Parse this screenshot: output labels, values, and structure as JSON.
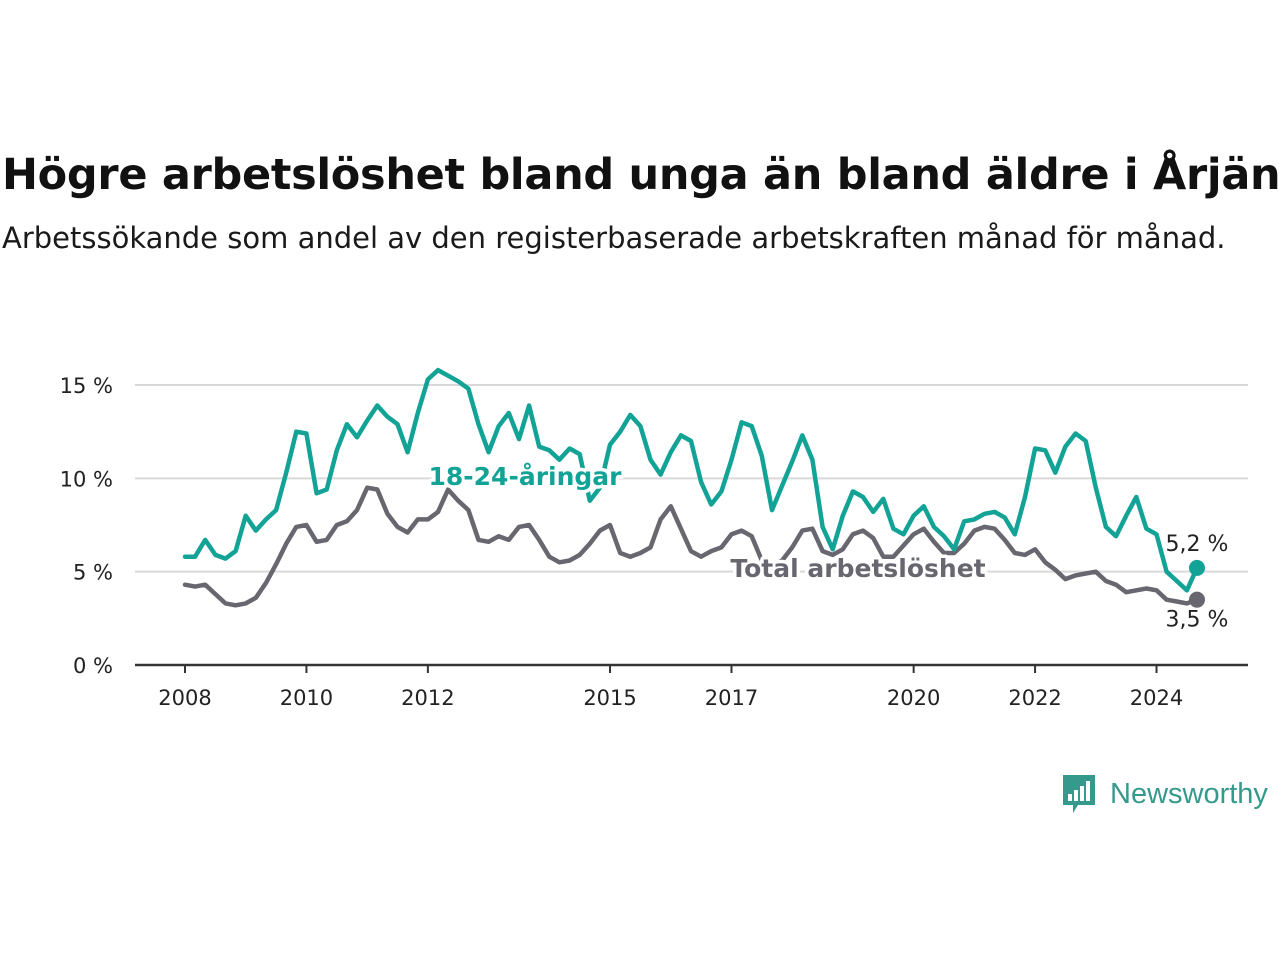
{
  "header": {
    "title": "Högre arbetslöshet bland unga än bland äldre i Årjäng",
    "subtitle": "Arbetssökande som andel av den registerbaserade arbetskraften månad för månad."
  },
  "brand": {
    "name": "Newsworthy",
    "icon": "newsworthy-chart-logo-icon"
  },
  "colors": {
    "young": "#13a396",
    "total": "#68666f",
    "grid": "#d9d9d9",
    "axis": "#333333"
  },
  "chart_data": {
    "type": "line",
    "title": "Högre arbetslöshet bland unga än bland äldre i Årjäng",
    "subtitle": "Arbetssökande som andel av den registerbaserade arbetskraften månad för månad.",
    "x_ticks": [
      "2008",
      "2010",
      "2012",
      "2015",
      "2017",
      "2020",
      "2022",
      "2024"
    ],
    "y_ticks": [
      "0 %",
      "5 %",
      "10 %",
      "15 %"
    ],
    "ylim": [
      0,
      15
    ],
    "xlim": [
      "2008-01",
      "2024-09"
    ],
    "grid": true,
    "legend": "inline labels",
    "series": [
      {
        "name": "18-24-åringar",
        "end_label": "5,2 %",
        "points": [
          [
            "2008-01",
            5.8
          ],
          [
            "2008-03",
            5.8
          ],
          [
            "2008-05",
            6.7
          ],
          [
            "2008-07",
            5.9
          ],
          [
            "2008-09",
            5.7
          ],
          [
            "2008-11",
            6.1
          ],
          [
            "2009-01",
            8.0
          ],
          [
            "2009-03",
            7.2
          ],
          [
            "2009-05",
            7.8
          ],
          [
            "2009-07",
            8.3
          ],
          [
            "2009-09",
            10.3
          ],
          [
            "2009-11",
            12.5
          ],
          [
            "2010-01",
            12.4
          ],
          [
            "2010-03",
            9.2
          ],
          [
            "2010-05",
            9.4
          ],
          [
            "2010-07",
            11.5
          ],
          [
            "2010-09",
            12.9
          ],
          [
            "2010-11",
            12.2
          ],
          [
            "2011-01",
            13.1
          ],
          [
            "2011-03",
            13.9
          ],
          [
            "2011-05",
            13.3
          ],
          [
            "2011-07",
            12.9
          ],
          [
            "2011-09",
            11.4
          ],
          [
            "2011-11",
            13.5
          ],
          [
            "2012-01",
            15.3
          ],
          [
            "2012-03",
            15.8
          ],
          [
            "2012-05",
            15.5
          ],
          [
            "2012-07",
            15.2
          ],
          [
            "2012-09",
            14.8
          ],
          [
            "2012-11",
            12.9
          ],
          [
            "2013-01",
            11.4
          ],
          [
            "2013-03",
            12.8
          ],
          [
            "2013-05",
            13.5
          ],
          [
            "2013-07",
            12.1
          ],
          [
            "2013-09",
            13.9
          ],
          [
            "2013-11",
            11.7
          ],
          [
            "2014-01",
            11.5
          ],
          [
            "2014-03",
            11.0
          ],
          [
            "2014-05",
            11.6
          ],
          [
            "2014-07",
            11.3
          ],
          [
            "2014-09",
            8.8
          ],
          [
            "2014-11",
            9.5
          ],
          [
            "2015-01",
            11.8
          ],
          [
            "2015-03",
            12.5
          ],
          [
            "2015-05",
            13.4
          ],
          [
            "2015-07",
            12.8
          ],
          [
            "2015-09",
            11.0
          ],
          [
            "2015-11",
            10.2
          ],
          [
            "2016-01",
            11.4
          ],
          [
            "2016-03",
            12.3
          ],
          [
            "2016-05",
            12.0
          ],
          [
            "2016-07",
            9.8
          ],
          [
            "2016-09",
            8.6
          ],
          [
            "2016-11",
            9.3
          ],
          [
            "2017-01",
            11.0
          ],
          [
            "2017-03",
            13.0
          ],
          [
            "2017-05",
            12.8
          ],
          [
            "2017-07",
            11.2
          ],
          [
            "2017-09",
            8.3
          ],
          [
            "2017-11",
            9.6
          ],
          [
            "2018-01",
            10.9
          ],
          [
            "2018-03",
            12.3
          ],
          [
            "2018-05",
            11.0
          ],
          [
            "2018-07",
            7.4
          ],
          [
            "2018-09",
            6.2
          ],
          [
            "2018-11",
            8.0
          ],
          [
            "2019-01",
            9.3
          ],
          [
            "2019-03",
            9.0
          ],
          [
            "2019-05",
            8.2
          ],
          [
            "2019-07",
            8.9
          ],
          [
            "2019-09",
            7.3
          ],
          [
            "2019-11",
            7.0
          ],
          [
            "2020-01",
            8.0
          ],
          [
            "2020-03",
            8.5
          ],
          [
            "2020-05",
            7.4
          ],
          [
            "2020-07",
            6.9
          ],
          [
            "2020-09",
            6.2
          ],
          [
            "2020-11",
            7.7
          ],
          [
            "2021-01",
            7.8
          ],
          [
            "2021-03",
            8.1
          ],
          [
            "2021-05",
            8.2
          ],
          [
            "2021-07",
            7.9
          ],
          [
            "2021-09",
            7.0
          ],
          [
            "2021-11",
            9.0
          ],
          [
            "2022-01",
            11.6
          ],
          [
            "2022-03",
            11.5
          ],
          [
            "2022-05",
            10.3
          ],
          [
            "2022-07",
            11.7
          ],
          [
            "2022-09",
            12.4
          ],
          [
            "2022-11",
            12.0
          ],
          [
            "2023-01",
            9.5
          ],
          [
            "2023-03",
            7.4
          ],
          [
            "2023-05",
            6.9
          ],
          [
            "2023-07",
            8.0
          ],
          [
            "2023-09",
            9.0
          ],
          [
            "2023-11",
            7.3
          ],
          [
            "2024-01",
            7.0
          ],
          [
            "2024-03",
            5.0
          ],
          [
            "2024-05",
            4.5
          ],
          [
            "2024-07",
            4.0
          ],
          [
            "2024-09",
            5.2
          ]
        ]
      },
      {
        "name": "Total arbetslöshet",
        "end_label": "3,5 %",
        "points": [
          [
            "2008-01",
            4.3
          ],
          [
            "2008-03",
            4.2
          ],
          [
            "2008-05",
            4.3
          ],
          [
            "2008-07",
            3.8
          ],
          [
            "2008-09",
            3.3
          ],
          [
            "2008-11",
            3.2
          ],
          [
            "2009-01",
            3.3
          ],
          [
            "2009-03",
            3.6
          ],
          [
            "2009-05",
            4.4
          ],
          [
            "2009-07",
            5.4
          ],
          [
            "2009-09",
            6.5
          ],
          [
            "2009-11",
            7.4
          ],
          [
            "2010-01",
            7.5
          ],
          [
            "2010-03",
            6.6
          ],
          [
            "2010-05",
            6.7
          ],
          [
            "2010-07",
            7.5
          ],
          [
            "2010-09",
            7.7
          ],
          [
            "2010-11",
            8.3
          ],
          [
            "2011-01",
            9.5
          ],
          [
            "2011-03",
            9.4
          ],
          [
            "2011-05",
            8.1
          ],
          [
            "2011-07",
            7.4
          ],
          [
            "2011-09",
            7.1
          ],
          [
            "2011-11",
            7.8
          ],
          [
            "2012-01",
            7.8
          ],
          [
            "2012-03",
            8.2
          ],
          [
            "2012-05",
            9.4
          ],
          [
            "2012-07",
            8.8
          ],
          [
            "2012-09",
            8.3
          ],
          [
            "2012-11",
            6.7
          ],
          [
            "2013-01",
            6.6
          ],
          [
            "2013-03",
            6.9
          ],
          [
            "2013-05",
            6.7
          ],
          [
            "2013-07",
            7.4
          ],
          [
            "2013-09",
            7.5
          ],
          [
            "2013-11",
            6.7
          ],
          [
            "2014-01",
            5.8
          ],
          [
            "2014-03",
            5.5
          ],
          [
            "2014-05",
            5.6
          ],
          [
            "2014-07",
            5.9
          ],
          [
            "2014-09",
            6.5
          ],
          [
            "2014-11",
            7.2
          ],
          [
            "2015-01",
            7.5
          ],
          [
            "2015-03",
            6.0
          ],
          [
            "2015-05",
            5.8
          ],
          [
            "2015-07",
            6.0
          ],
          [
            "2015-09",
            6.3
          ],
          [
            "2015-11",
            7.8
          ],
          [
            "2016-01",
            8.5
          ],
          [
            "2016-03",
            7.3
          ],
          [
            "2016-05",
            6.1
          ],
          [
            "2016-07",
            5.8
          ],
          [
            "2016-09",
            6.1
          ],
          [
            "2016-11",
            6.3
          ],
          [
            "2017-01",
            7.0
          ],
          [
            "2017-03",
            7.2
          ],
          [
            "2017-05",
            6.9
          ],
          [
            "2017-07",
            5.6
          ],
          [
            "2017-09",
            5.3
          ],
          [
            "2017-11",
            5.6
          ],
          [
            "2018-01",
            6.3
          ],
          [
            "2018-03",
            7.2
          ],
          [
            "2018-05",
            7.3
          ],
          [
            "2018-07",
            6.1
          ],
          [
            "2018-09",
            5.9
          ],
          [
            "2018-11",
            6.2
          ],
          [
            "2019-01",
            7.0
          ],
          [
            "2019-03",
            7.2
          ],
          [
            "2019-05",
            6.8
          ],
          [
            "2019-07",
            5.8
          ],
          [
            "2019-09",
            5.8
          ],
          [
            "2019-11",
            6.4
          ],
          [
            "2020-01",
            7.0
          ],
          [
            "2020-03",
            7.3
          ],
          [
            "2020-05",
            6.6
          ],
          [
            "2020-07",
            6.0
          ],
          [
            "2020-09",
            6.0
          ],
          [
            "2020-11",
            6.5
          ],
          [
            "2021-01",
            7.2
          ],
          [
            "2021-03",
            7.4
          ],
          [
            "2021-05",
            7.3
          ],
          [
            "2021-07",
            6.7
          ],
          [
            "2021-09",
            6.0
          ],
          [
            "2021-11",
            5.9
          ],
          [
            "2022-01",
            6.2
          ],
          [
            "2022-03",
            5.5
          ],
          [
            "2022-05",
            5.1
          ],
          [
            "2022-07",
            4.6
          ],
          [
            "2022-09",
            4.8
          ],
          [
            "2022-11",
            4.9
          ],
          [
            "2023-01",
            5.0
          ],
          [
            "2023-03",
            4.5
          ],
          [
            "2023-05",
            4.3
          ],
          [
            "2023-07",
            3.9
          ],
          [
            "2023-09",
            4.0
          ],
          [
            "2023-11",
            4.1
          ],
          [
            "2024-01",
            4.0
          ],
          [
            "2024-03",
            3.5
          ],
          [
            "2024-05",
            3.4
          ],
          [
            "2024-07",
            3.3
          ],
          [
            "2024-09",
            3.5
          ]
        ]
      }
    ]
  }
}
